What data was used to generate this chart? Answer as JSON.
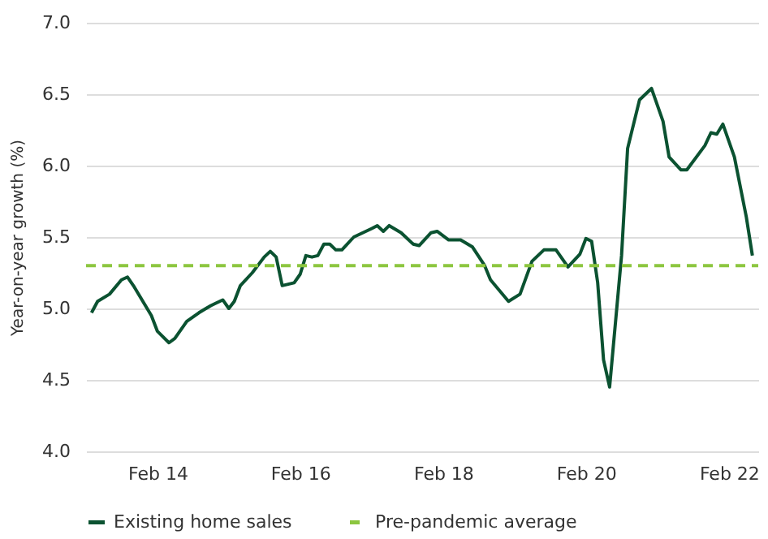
{
  "chart_data": {
    "type": "line",
    "ylabel": "Year-on-year growth (%)",
    "x": [
      "2013-03",
      "2013-04",
      "2013-06",
      "2013-08",
      "2013-09",
      "2013-10",
      "2014-01",
      "2014-02",
      "2014-04",
      "2014-05",
      "2014-07",
      "2014-09",
      "2014-11",
      "2014-12",
      "2015-01",
      "2015-02",
      "2015-03",
      "2015-04",
      "2015-06",
      "2015-08",
      "2015-09",
      "2015-10",
      "2015-11",
      "2016-01",
      "2016-02",
      "2016-03",
      "2016-04",
      "2016-05",
      "2016-06",
      "2016-07",
      "2016-08",
      "2016-09",
      "2016-11",
      "2017-02",
      "2017-03",
      "2017-04",
      "2017-05",
      "2017-07",
      "2017-09",
      "2017-10",
      "2017-12",
      "2018-01",
      "2018-03",
      "2018-05",
      "2018-07",
      "2018-09",
      "2018-10",
      "2019-01",
      "2019-03",
      "2019-05",
      "2019-07",
      "2019-09",
      "2019-11",
      "2020-01",
      "2020-02",
      "2020-03",
      "2020-04",
      "2020-05",
      "2020-06",
      "2020-08",
      "2020-09",
      "2020-11",
      "2021-01",
      "2021-03",
      "2021-04",
      "2021-06",
      "2021-07",
      "2021-10",
      "2021-11",
      "2021-12",
      "2022-01",
      "2022-03",
      "2022-05",
      "2022-06"
    ],
    "series": [
      {
        "name": "Existing home sales",
        "color": "#0b5231",
        "values": [
          4.97,
          5.05,
          5.1,
          5.2,
          5.22,
          5.16,
          4.95,
          4.84,
          4.76,
          4.79,
          4.91,
          4.97,
          5.02,
          5.04,
          5.06,
          5.0,
          5.05,
          5.16,
          5.25,
          5.36,
          5.4,
          5.36,
          5.16,
          5.18,
          5.24,
          5.37,
          5.36,
          5.37,
          5.45,
          5.45,
          5.41,
          5.41,
          5.5,
          5.56,
          5.58,
          5.54,
          5.58,
          5.53,
          5.45,
          5.44,
          5.53,
          5.54,
          5.48,
          5.48,
          5.43,
          5.3,
          5.2,
          5.05,
          5.1,
          5.33,
          5.41,
          5.41,
          5.29,
          5.38,
          5.49,
          5.47,
          5.18,
          4.64,
          4.45,
          5.37,
          6.12,
          6.46,
          6.54,
          6.31,
          6.06,
          5.97,
          5.97,
          6.14,
          6.23,
          6.22,
          6.29,
          6.06,
          5.64,
          5.37
        ]
      }
    ],
    "ref_lines": [
      {
        "axis": "y",
        "value": 5.3,
        "label": "Pre-pandemic average",
        "color": "#8cc63f",
        "line_style": "dashed"
      }
    ],
    "xlim": [
      "2013-02",
      "2022-07"
    ],
    "xticks": [
      {
        "value": "2014-02",
        "label": "Feb 14"
      },
      {
        "value": "2016-02",
        "label": "Feb 16"
      },
      {
        "value": "2018-02",
        "label": "Feb 18"
      },
      {
        "value": "2020-02",
        "label": "Feb 20"
      },
      {
        "value": "2022-02",
        "label": "Feb 22"
      }
    ],
    "ylim": [
      4.0,
      7.0
    ],
    "yticks": [
      {
        "value": 4,
        "label": "4.0"
      },
      4.5,
      {
        "value": 5,
        "label": "5.0"
      },
      5.5,
      {
        "value": 6,
        "label": "6.0"
      },
      6.5,
      {
        "value": 7,
        "label": "7.0"
      }
    ],
    "grid": "y",
    "legend": "bottom",
    "line_style": "solid",
    "marker": "none"
  }
}
